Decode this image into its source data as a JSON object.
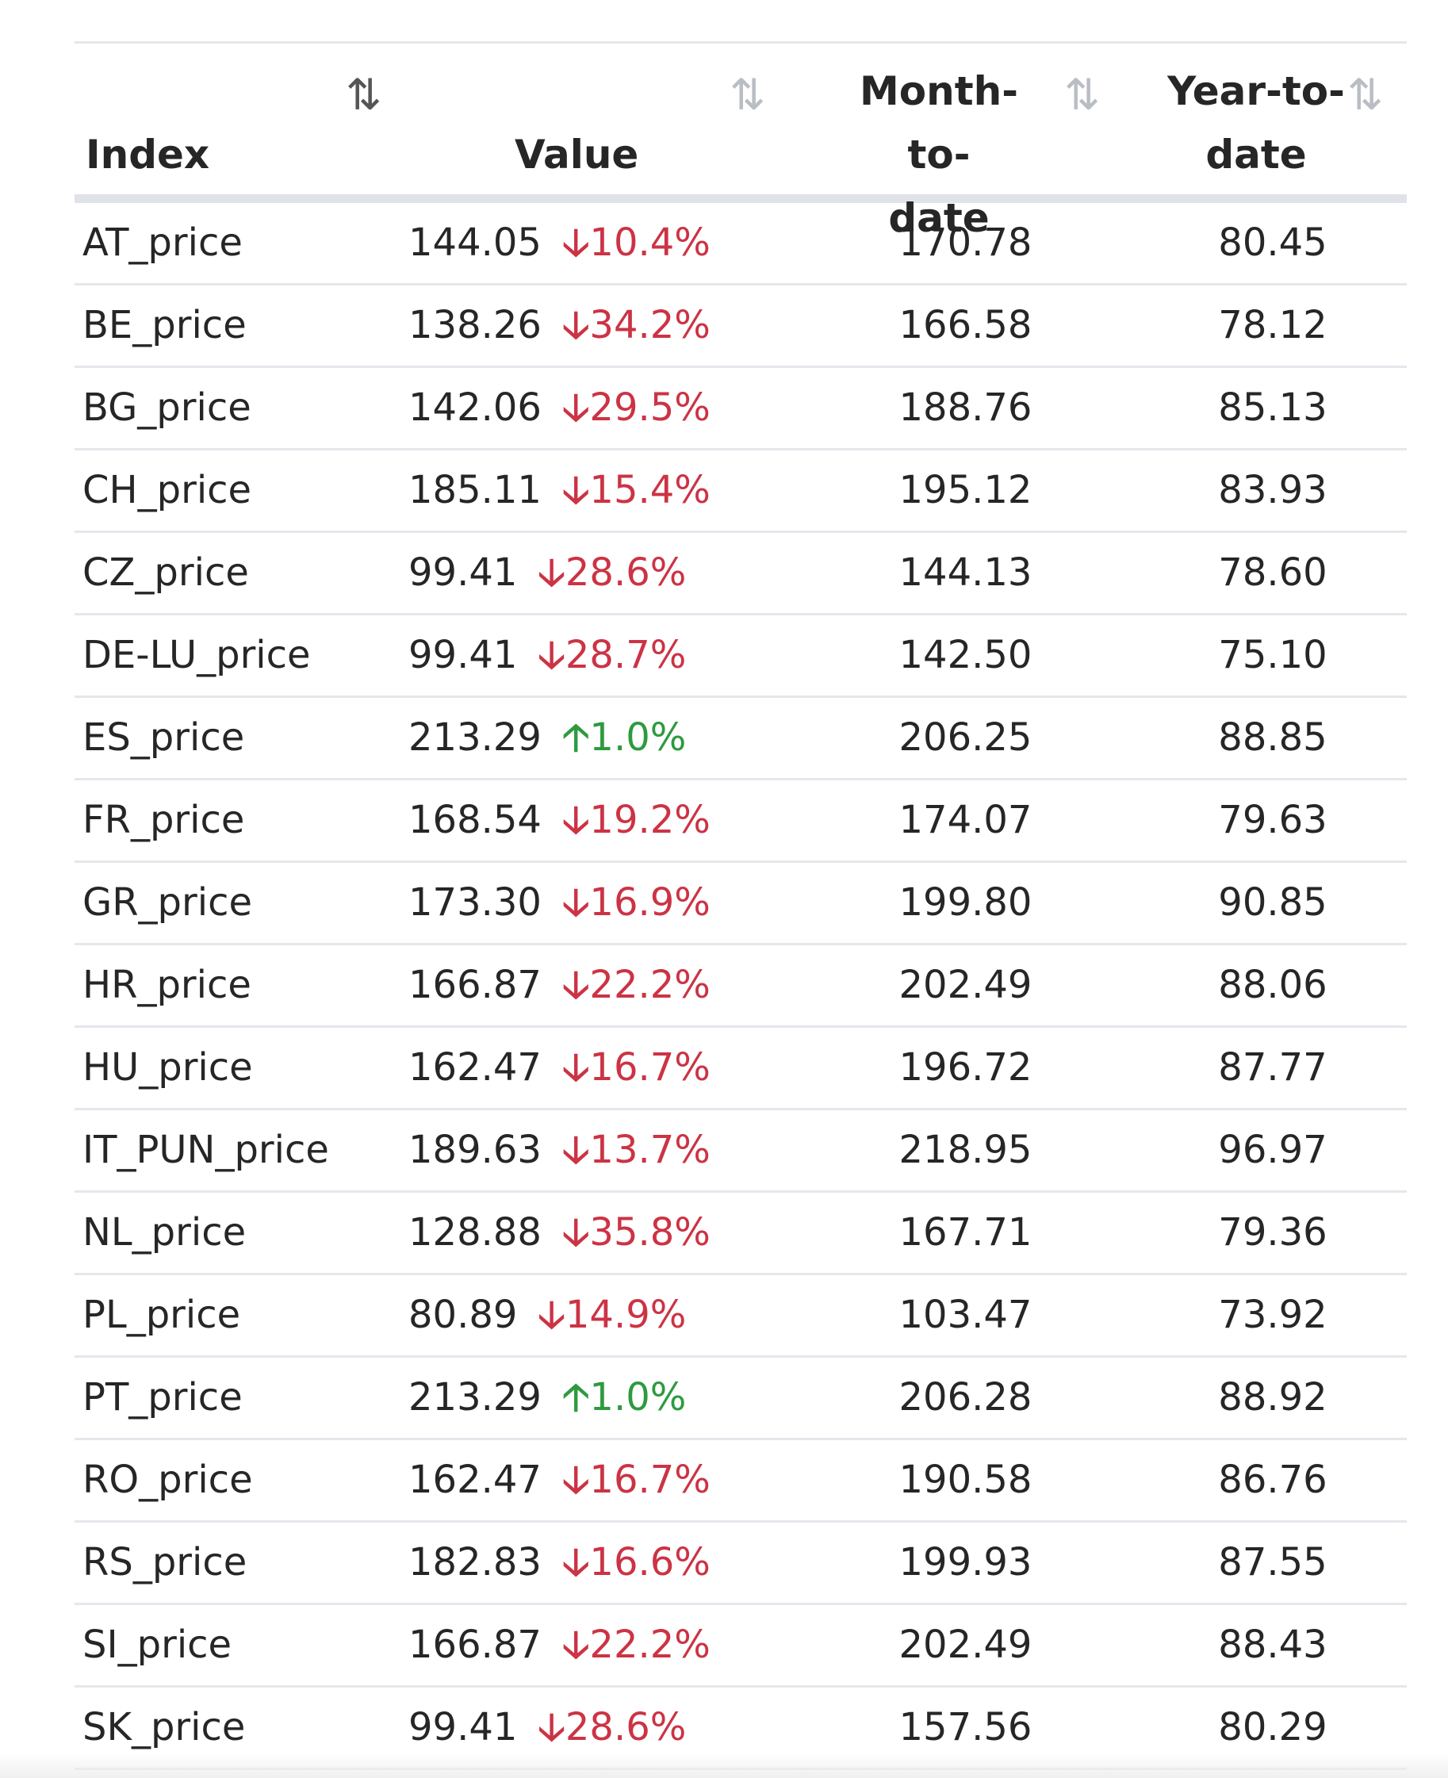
{
  "table": {
    "headers": {
      "index": "Index",
      "value": "Value",
      "mtd_line1": "Month-to-",
      "mtd_line2": "date",
      "ytd_line1": "Year-to-",
      "ytd_line2": "date",
      "sort_icon": "⇅",
      "sort_icon_name": "sort-icon"
    },
    "colors": {
      "down": "#cc3344",
      "up": "#2e9a3f"
    },
    "rows": [
      {
        "index": "AT_price",
        "value": "144.05",
        "dir": "down",
        "arrow": "🡣",
        "change": "10.4%",
        "mtd": "170.78",
        "ytd": "80.45"
      },
      {
        "index": "BE_price",
        "value": "138.26",
        "dir": "down",
        "arrow": "🡣",
        "change": "34.2%",
        "mtd": "166.58",
        "ytd": "78.12"
      },
      {
        "index": "BG_price",
        "value": "142.06",
        "dir": "down",
        "arrow": "🡣",
        "change": "29.5%",
        "mtd": "188.76",
        "ytd": "85.13"
      },
      {
        "index": "CH_price",
        "value": "185.11",
        "dir": "down",
        "arrow": "🡣",
        "change": "15.4%",
        "mtd": "195.12",
        "ytd": "83.93"
      },
      {
        "index": "CZ_price",
        "value": "99.41",
        "dir": "down",
        "arrow": "🡣",
        "change": "28.6%",
        "mtd": "144.13",
        "ytd": "78.60"
      },
      {
        "index": "DE-LU_price",
        "value": "99.41",
        "dir": "down",
        "arrow": "🡣",
        "change": "28.7%",
        "mtd": "142.50",
        "ytd": "75.10"
      },
      {
        "index": "ES_price",
        "value": "213.29",
        "dir": "up",
        "arrow": "🡡",
        "change": "1.0%",
        "mtd": "206.25",
        "ytd": "88.85"
      },
      {
        "index": "FR_price",
        "value": "168.54",
        "dir": "down",
        "arrow": "🡣",
        "change": "19.2%",
        "mtd": "174.07",
        "ytd": "79.63"
      },
      {
        "index": "GR_price",
        "value": "173.30",
        "dir": "down",
        "arrow": "🡣",
        "change": "16.9%",
        "mtd": "199.80",
        "ytd": "90.85"
      },
      {
        "index": "HR_price",
        "value": "166.87",
        "dir": "down",
        "arrow": "🡣",
        "change": "22.2%",
        "mtd": "202.49",
        "ytd": "88.06"
      },
      {
        "index": "HU_price",
        "value": "162.47",
        "dir": "down",
        "arrow": "🡣",
        "change": "16.7%",
        "mtd": "196.72",
        "ytd": "87.77"
      },
      {
        "index": "IT_PUN_price",
        "value": "189.63",
        "dir": "down",
        "arrow": "🡣",
        "change": "13.7%",
        "mtd": "218.95",
        "ytd": "96.97"
      },
      {
        "index": "NL_price",
        "value": "128.88",
        "dir": "down",
        "arrow": "🡣",
        "change": "35.8%",
        "mtd": "167.71",
        "ytd": "79.36"
      },
      {
        "index": "PL_price",
        "value": "80.89",
        "dir": "down",
        "arrow": "🡣",
        "change": "14.9%",
        "mtd": "103.47",
        "ytd": "73.92"
      },
      {
        "index": "PT_price",
        "value": "213.29",
        "dir": "up",
        "arrow": "🡡",
        "change": "1.0%",
        "mtd": "206.28",
        "ytd": "88.92"
      },
      {
        "index": "RO_price",
        "value": "162.47",
        "dir": "down",
        "arrow": "🡣",
        "change": "16.7%",
        "mtd": "190.58",
        "ytd": "86.76"
      },
      {
        "index": "RS_price",
        "value": "182.83",
        "dir": "down",
        "arrow": "🡣",
        "change": "16.6%",
        "mtd": "199.93",
        "ytd": "87.55"
      },
      {
        "index": "SI_price",
        "value": "166.87",
        "dir": "down",
        "arrow": "🡣",
        "change": "22.2%",
        "mtd": "202.49",
        "ytd": "88.43"
      },
      {
        "index": "SK_price",
        "value": "99.41",
        "dir": "down",
        "arrow": "🡣",
        "change": "28.6%",
        "mtd": "157.56",
        "ytd": "80.29"
      }
    ]
  }
}
